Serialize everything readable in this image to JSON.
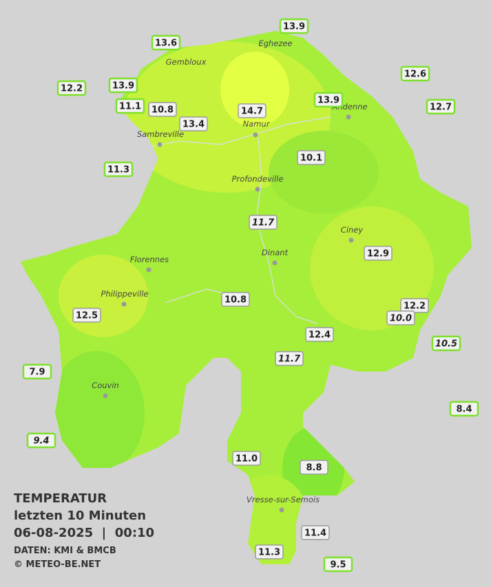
{
  "legend_block": {
    "title": "TEMPERATUR",
    "subtitle": "letzten 10 Minuten",
    "datetime": "06-08-2025  |  00:10",
    "source": "DATEN: KMI & BMCB",
    "copyright": "© METEO-BE.NET"
  },
  "cities": [
    "Eghezee",
    "Gembloux",
    "Andenne",
    "Namur",
    "Sambreville",
    "Profondeville",
    "Ciney",
    "Dinant",
    "Florennes",
    "Philippeville",
    "Couvin",
    "Vresse-sur-Semois"
  ],
  "stations": [
    "13.9",
    "13.6",
    "12.2",
    "13.9",
    "11.1",
    "12.6",
    "12.7",
    "11.3",
    "7.9",
    "9.4",
    "10.5",
    "8.4",
    "9.5",
    "13.9",
    "10.8",
    "13.4",
    "14.7",
    "10.1",
    "11.7",
    "12.9",
    "10.8",
    "12.5",
    "12.2",
    "10.0",
    "12.4",
    "11.7",
    "11.0",
    "8.8",
    "11.4",
    "11.3"
  ]
}
